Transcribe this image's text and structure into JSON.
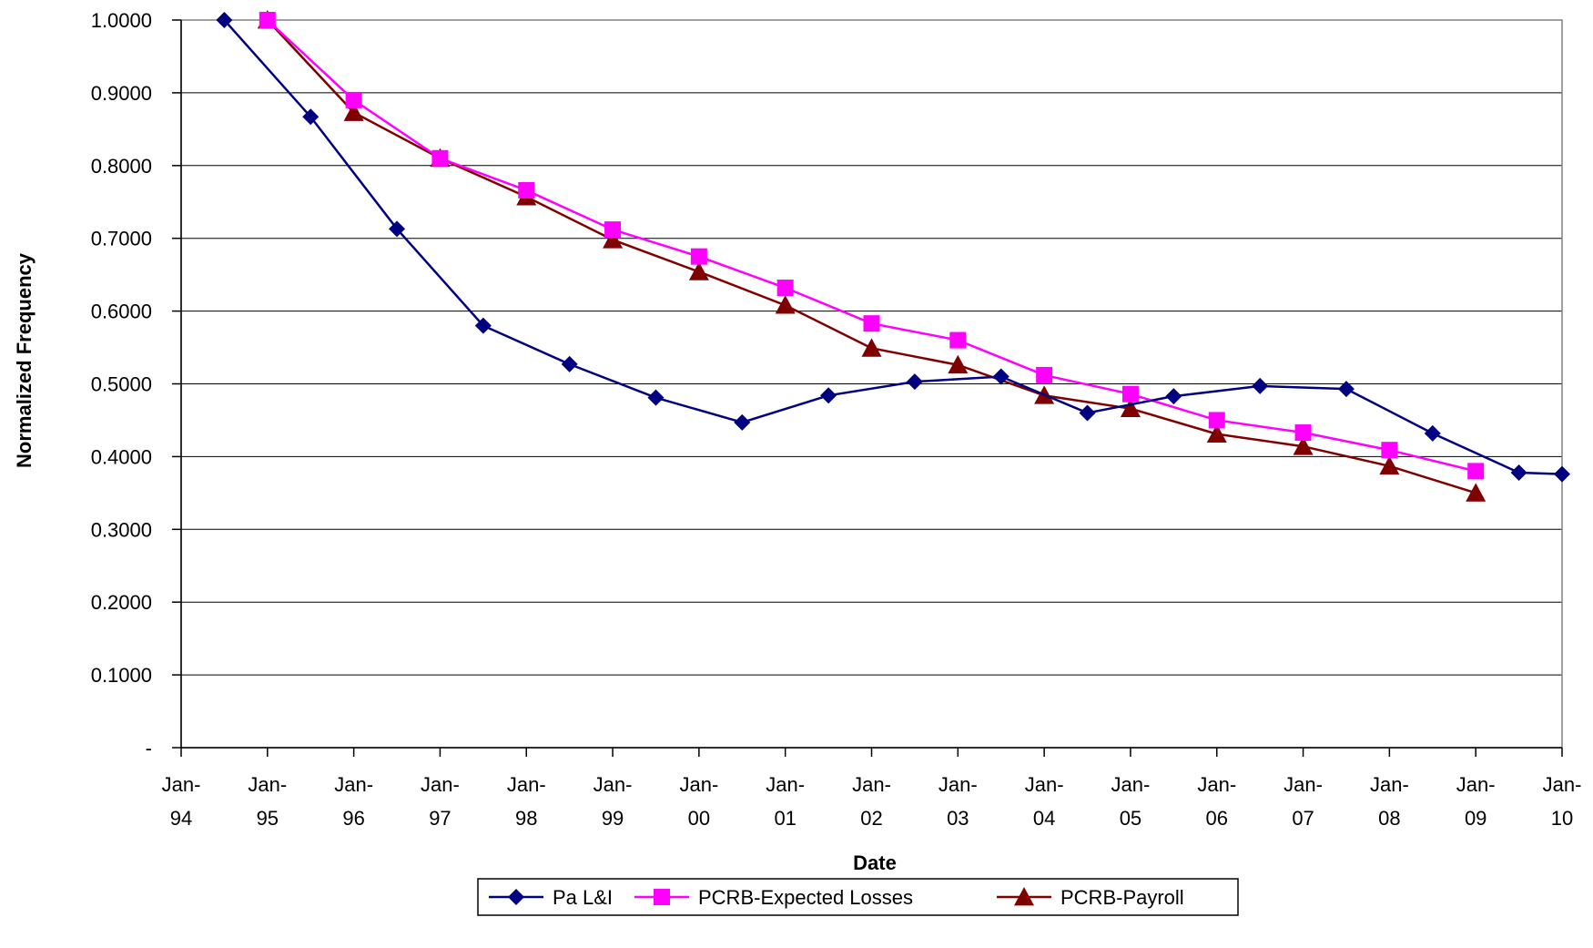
{
  "chart_data": {
    "type": "line",
    "title": "",
    "xlabel": "Date",
    "ylabel": "Normalized Frequency",
    "x_ticks": [
      "Jan-94",
      "Jan-95",
      "Jan-96",
      "Jan-97",
      "Jan-98",
      "Jan-99",
      "Jan-00",
      "Jan-01",
      "Jan-02",
      "Jan-03",
      "Jan-04",
      "Jan-05",
      "Jan-06",
      "Jan-07",
      "Jan-08",
      "Jan-09",
      "Jan-10"
    ],
    "xlim": [
      1994,
      2010
    ],
    "y_ticks": [
      "-",
      "0.1000",
      "0.2000",
      "0.3000",
      "0.4000",
      "0.5000",
      "0.6000",
      "0.7000",
      "0.8000",
      "0.9000",
      "1.0000"
    ],
    "ylim": [
      0,
      1.0
    ],
    "grid": "horizontal",
    "legend_position": "bottom",
    "series": [
      {
        "name": "Pa L&I",
        "color": "#000080",
        "marker": "diamond",
        "x": [
          "Jul-94",
          "Jul-95",
          "Jul-96",
          "Jul-97",
          "Jul-98",
          "Jul-99",
          "Jul-00",
          "Jul-01",
          "Jul-02",
          "Jul-03",
          "Jul-04",
          "Jul-05",
          "Jul-06",
          "Jul-07",
          "Jul-08",
          "Jul-09",
          "Jan-10"
        ],
        "y": [
          1.0,
          0.867,
          0.713,
          0.58,
          0.527,
          0.481,
          0.447,
          0.484,
          0.503,
          0.51,
          0.46,
          0.483,
          0.497,
          0.493,
          0.432,
          0.378,
          0.376
        ]
      },
      {
        "name": "PCRB-Expected Losses",
        "color": "#FF00FF",
        "marker": "square",
        "x": [
          "Jan-95",
          "Jan-96",
          "Jan-97",
          "Jan-98",
          "Jan-99",
          "Jan-00",
          "Jan-01",
          "Jan-02",
          "Jan-03",
          "Jan-04",
          "Jan-05",
          "Jan-06",
          "Jan-07",
          "Jan-08",
          "Jan-09"
        ],
        "y": [
          1.0,
          0.89,
          0.81,
          0.766,
          0.712,
          0.675,
          0.632,
          0.583,
          0.56,
          0.512,
          0.486,
          0.45,
          0.433,
          0.409,
          0.38
        ]
      },
      {
        "name": "PCRB-Payroll",
        "color": "#800000",
        "marker": "triangle",
        "x": [
          "Jan-95",
          "Jan-96",
          "Jan-97",
          "Jan-98",
          "Jan-99",
          "Jan-00",
          "Jan-01",
          "Jan-02",
          "Jan-03",
          "Jan-04",
          "Jan-05",
          "Jan-06",
          "Jan-07",
          "Jan-08",
          "Jan-09"
        ],
        "y": [
          1.0,
          0.873,
          0.81,
          0.757,
          0.698,
          0.654,
          0.608,
          0.549,
          0.526,
          0.484,
          0.466,
          0.431,
          0.414,
          0.387,
          0.35
        ]
      }
    ]
  }
}
